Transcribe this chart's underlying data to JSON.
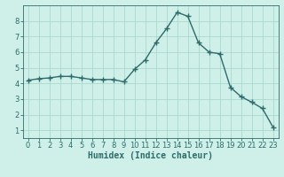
{
  "x": [
    0,
    1,
    2,
    3,
    4,
    5,
    6,
    7,
    8,
    9,
    10,
    11,
    12,
    13,
    14,
    15,
    16,
    17,
    18,
    19,
    20,
    21,
    22,
    23
  ],
  "y": [
    4.2,
    4.3,
    4.35,
    4.45,
    4.45,
    4.35,
    4.25,
    4.25,
    4.25,
    4.1,
    4.9,
    5.5,
    6.6,
    7.5,
    8.55,
    8.3,
    6.6,
    6.0,
    5.9,
    3.75,
    3.15,
    2.8,
    2.4,
    1.2
  ],
  "line_color": "#2e6b6b",
  "marker": "+",
  "marker_size": 4,
  "marker_linewidth": 1.0,
  "bg_color": "#cef0e8",
  "grid_color": "#aad8ce",
  "xlabel": "Humidex (Indice chaleur)",
  "xlim": [
    -0.5,
    23.5
  ],
  "ylim": [
    0.5,
    9.0
  ],
  "yticks": [
    1,
    2,
    3,
    4,
    5,
    6,
    7,
    8
  ],
  "xticks": [
    0,
    1,
    2,
    3,
    4,
    5,
    6,
    7,
    8,
    9,
    10,
    11,
    12,
    13,
    14,
    15,
    16,
    17,
    18,
    19,
    20,
    21,
    22,
    23
  ],
  "xlabel_fontsize": 7,
  "tick_fontsize": 6,
  "axis_color": "#2e6b6b",
  "linewidth": 1.0
}
